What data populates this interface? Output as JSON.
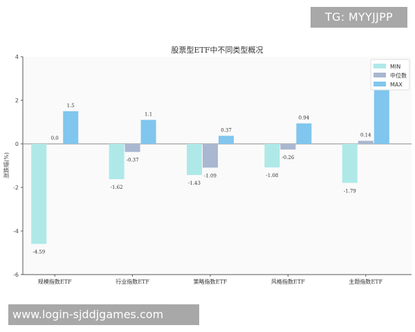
{
  "overlays": {
    "tag_text": "TG: MYYJJPP",
    "url_text": "www.login-sjddjgames.com"
  },
  "chart_data": {
    "type": "bar",
    "title": "股票型ETF中不同类型概况",
    "xlabel": "",
    "ylabel": "涨跌幅(%)",
    "ylim": [
      -6,
      4
    ],
    "yticks": [
      -6,
      -4,
      -2,
      0,
      2,
      4
    ],
    "grid": false,
    "legend_position": "top-right",
    "categories": [
      "规模指数ETF",
      "行业指数ETF",
      "策略指数ETF",
      "风格指数ETF",
      "主题指数ETF"
    ],
    "series": [
      {
        "name": "MIN",
        "color": "#aee9e8",
        "values": [
          -4.59,
          -1.62,
          -1.43,
          -1.08,
          -1.79
        ],
        "labels": [
          "-4.59",
          "-1.62",
          "-1.43",
          "-1.08",
          "-1.79"
        ]
      },
      {
        "name": "中位数",
        "color": "#a9b7d0",
        "values": [
          0.0,
          -0.37,
          -1.09,
          -0.26,
          0.14
        ],
        "labels": [
          "0.0",
          "-0.37",
          "-1.09",
          "-0.26",
          "0.14"
        ]
      },
      {
        "name": "MAX",
        "color": "#80c6ee",
        "values": [
          1.5,
          1.1,
          0.37,
          0.94,
          2.6
        ],
        "labels": [
          "1.5",
          "1.1",
          "0.37",
          "0.94",
          ""
        ]
      }
    ]
  }
}
